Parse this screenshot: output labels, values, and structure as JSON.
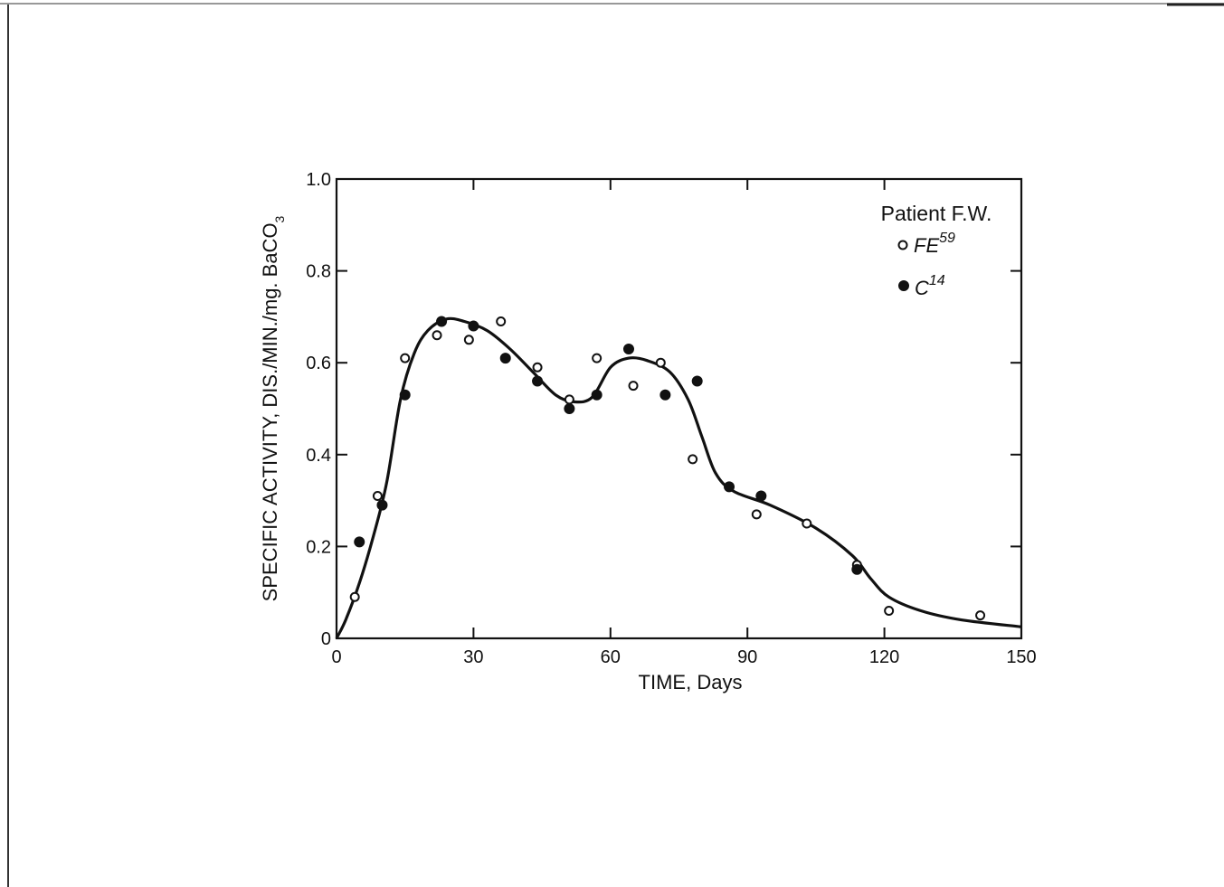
{
  "chart_data": {
    "type": "scatter",
    "title": "",
    "xlabel": "TIME, Days",
    "ylabel": "SPECIFIC ACTIVITY, DIS./MIN./mg. BaCO",
    "ylabel_subscript": "3",
    "xlim": [
      0,
      150
    ],
    "ylim": [
      0,
      1.0
    ],
    "x_ticks": [
      0,
      30,
      60,
      90,
      120,
      150
    ],
    "x_tick_labels": [
      "0",
      "30",
      "60",
      "90",
      "120",
      "150"
    ],
    "y_ticks": [
      0,
      0.2,
      0.4,
      0.6,
      0.8,
      1.0
    ],
    "y_tick_labels": [
      "0",
      "0.2",
      "0.4",
      "0.6",
      "0.8",
      "1.0"
    ],
    "grid": false,
    "legend": {
      "title": "Patient F.W.",
      "placement": "top-right",
      "entries": [
        {
          "series": "fe59",
          "base": "FE",
          "superscript": "59",
          "marker": "open-circle"
        },
        {
          "series": "c14",
          "base": "C",
          "superscript": "14",
          "marker": "filled-circle"
        }
      ]
    },
    "series": [
      {
        "key": "fe59",
        "name": "FE59",
        "marker": "open-circle",
        "points": [
          {
            "x": 4,
            "y": 0.09
          },
          {
            "x": 9,
            "y": 0.31
          },
          {
            "x": 15,
            "y": 0.61
          },
          {
            "x": 22,
            "y": 0.66
          },
          {
            "x": 29,
            "y": 0.65
          },
          {
            "x": 36,
            "y": 0.69
          },
          {
            "x": 44,
            "y": 0.59
          },
          {
            "x": 51,
            "y": 0.52
          },
          {
            "x": 57,
            "y": 0.61
          },
          {
            "x": 65,
            "y": 0.55
          },
          {
            "x": 71,
            "y": 0.6
          },
          {
            "x": 78,
            "y": 0.39
          },
          {
            "x": 92,
            "y": 0.27
          },
          {
            "x": 103,
            "y": 0.25
          },
          {
            "x": 114,
            "y": 0.16
          },
          {
            "x": 121,
            "y": 0.06
          },
          {
            "x": 141,
            "y": 0.05
          }
        ]
      },
      {
        "key": "c14",
        "name": "C14",
        "marker": "filled-circle",
        "points": [
          {
            "x": 5,
            "y": 0.21
          },
          {
            "x": 10,
            "y": 0.29
          },
          {
            "x": 15,
            "y": 0.53
          },
          {
            "x": 23,
            "y": 0.69
          },
          {
            "x": 30,
            "y": 0.68
          },
          {
            "x": 37,
            "y": 0.61
          },
          {
            "x": 44,
            "y": 0.56
          },
          {
            "x": 51,
            "y": 0.5
          },
          {
            "x": 57,
            "y": 0.53
          },
          {
            "x": 64,
            "y": 0.63
          },
          {
            "x": 72,
            "y": 0.53
          },
          {
            "x": 79,
            "y": 0.56
          },
          {
            "x": 86,
            "y": 0.33
          },
          {
            "x": 93,
            "y": 0.31
          },
          {
            "x": 114,
            "y": 0.15
          }
        ]
      }
    ],
    "fitted_curve": [
      {
        "x": 0,
        "y": 0.0
      },
      {
        "x": 2,
        "y": 0.04
      },
      {
        "x": 5,
        "y": 0.12
      },
      {
        "x": 8,
        "y": 0.22
      },
      {
        "x": 11,
        "y": 0.34
      },
      {
        "x": 14,
        "y": 0.52
      },
      {
        "x": 17,
        "y": 0.62
      },
      {
        "x": 20,
        "y": 0.67
      },
      {
        "x": 24,
        "y": 0.695
      },
      {
        "x": 28,
        "y": 0.69
      },
      {
        "x": 33,
        "y": 0.67
      },
      {
        "x": 38,
        "y": 0.63
      },
      {
        "x": 43,
        "y": 0.58
      },
      {
        "x": 48,
        "y": 0.53
      },
      {
        "x": 52,
        "y": 0.515
      },
      {
        "x": 56,
        "y": 0.525
      },
      {
        "x": 60,
        "y": 0.59
      },
      {
        "x": 64,
        "y": 0.61
      },
      {
        "x": 68,
        "y": 0.605
      },
      {
        "x": 73,
        "y": 0.58
      },
      {
        "x": 77,
        "y": 0.52
      },
      {
        "x": 80,
        "y": 0.44
      },
      {
        "x": 83,
        "y": 0.36
      },
      {
        "x": 87,
        "y": 0.32
      },
      {
        "x": 95,
        "y": 0.29
      },
      {
        "x": 105,
        "y": 0.24
      },
      {
        "x": 113,
        "y": 0.18
      },
      {
        "x": 117,
        "y": 0.13
      },
      {
        "x": 121,
        "y": 0.09
      },
      {
        "x": 128,
        "y": 0.06
      },
      {
        "x": 137,
        "y": 0.04
      },
      {
        "x": 150,
        "y": 0.025
      }
    ]
  }
}
